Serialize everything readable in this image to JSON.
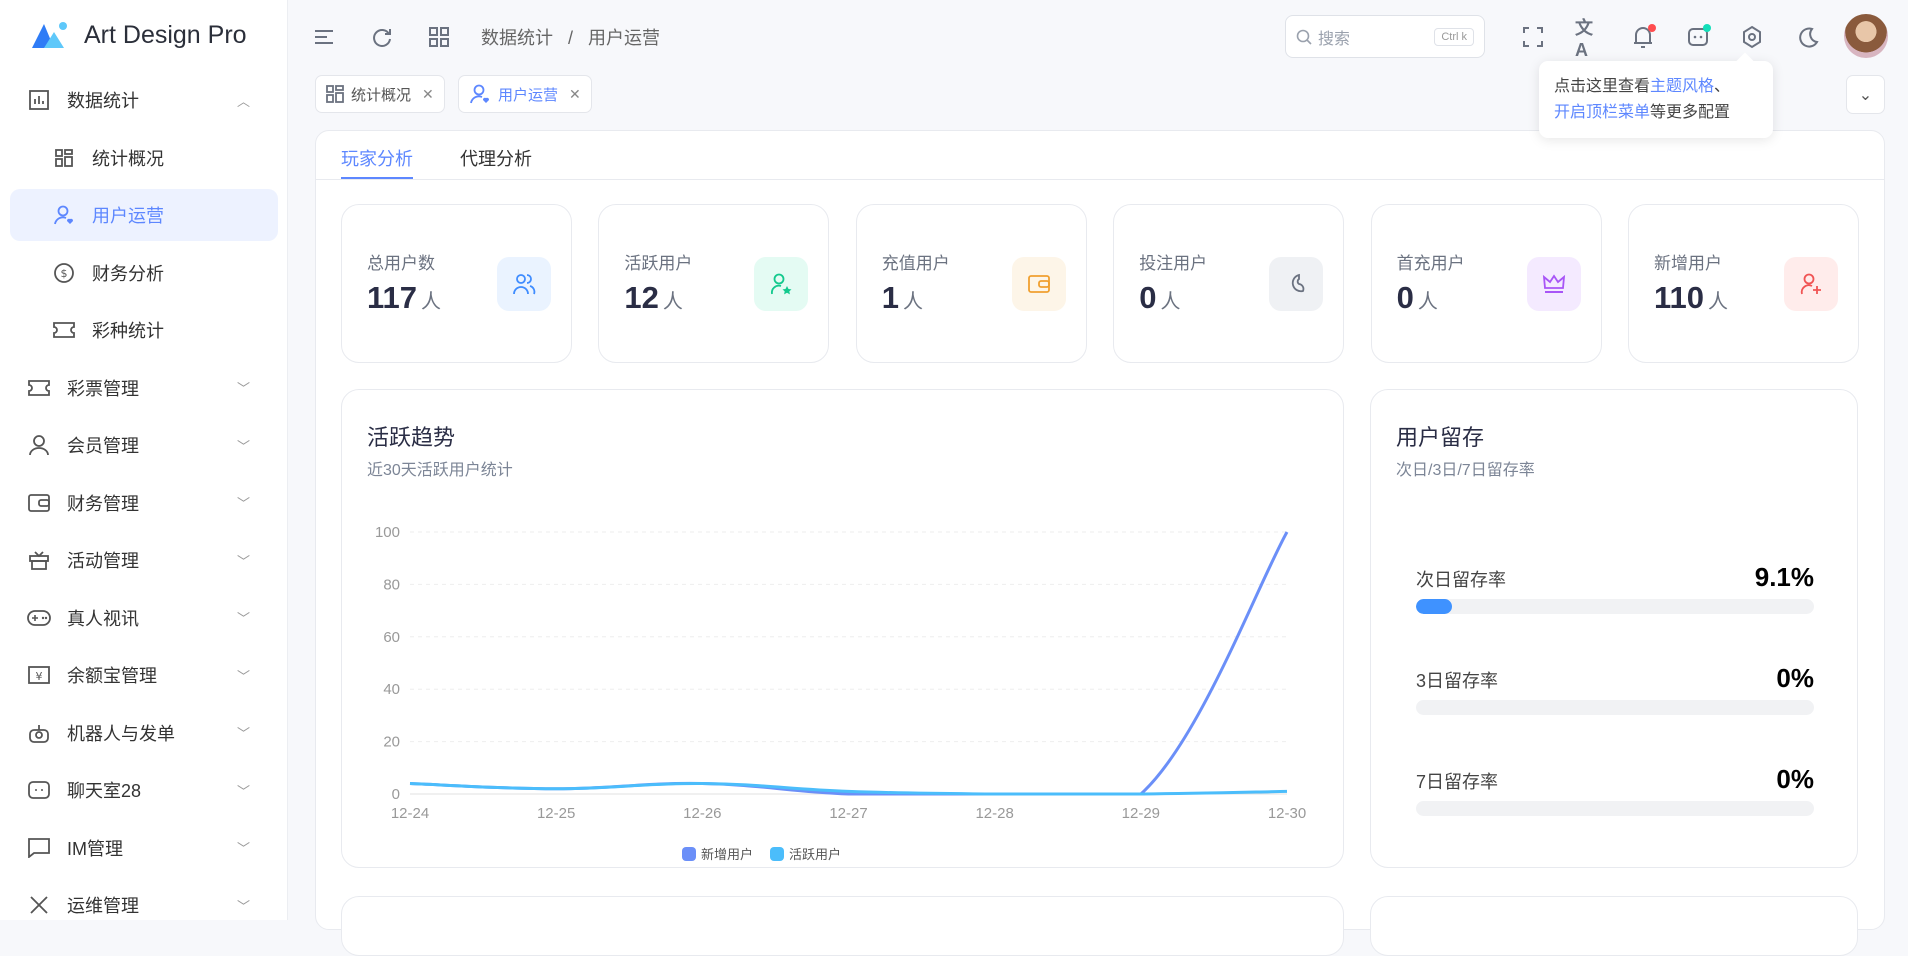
{
  "app": {
    "title": "Art Design Pro"
  },
  "sidebar": {
    "items": [
      {
        "label": "数据统计",
        "icon": "bar-chart-icon",
        "level": "top",
        "expanded": true
      },
      {
        "label": "统计概况",
        "icon": "grid-icon",
        "level": "sub"
      },
      {
        "label": "用户运营",
        "icon": "user-heart-icon",
        "level": "sub",
        "active": true
      },
      {
        "label": "财务分析",
        "icon": "dollar-circle-icon",
        "level": "sub"
      },
      {
        "label": "彩种统计",
        "icon": "ticket-icon",
        "level": "sub"
      },
      {
        "label": "彩票管理",
        "icon": "ticket-icon",
        "level": "top"
      },
      {
        "label": "会员管理",
        "icon": "user-icon",
        "level": "top"
      },
      {
        "label": "财务管理",
        "icon": "wallet-icon",
        "level": "top"
      },
      {
        "label": "活动管理",
        "icon": "gift-icon",
        "level": "top"
      },
      {
        "label": "真人视讯",
        "icon": "gamepad-icon",
        "level": "top"
      },
      {
        "label": "余额宝管理",
        "icon": "yen-icon",
        "level": "top"
      },
      {
        "label": "机器人与发单",
        "icon": "robot-icon",
        "level": "top"
      },
      {
        "label": "聊天室28",
        "icon": "chat-bot-icon",
        "level": "top"
      },
      {
        "label": "IM管理",
        "icon": "message-icon",
        "level": "top"
      },
      {
        "label": "运维管理",
        "icon": "tools-icon",
        "level": "top"
      }
    ]
  },
  "header": {
    "breadcrumb": [
      "数据统计",
      "用户运营"
    ],
    "breadcrumb_sep": "/",
    "search_placeholder": "搜索",
    "search_shortcut": "Ctrl k"
  },
  "tabs": [
    {
      "label": "统计概况",
      "icon": "grid-icon"
    },
    {
      "label": "用户运营",
      "icon": "user-heart-icon",
      "active": true
    }
  ],
  "tooltip": {
    "p1": "点击这里查看",
    "l1": "主题风格",
    "p2": "、",
    "l2": "开启顶栏菜单",
    "p3": "等更多配置"
  },
  "subtabs": [
    {
      "label": "玩家分析",
      "active": true
    },
    {
      "label": "代理分析"
    }
  ],
  "stats": [
    {
      "label": "总用户数",
      "value": "117",
      "unit": "人",
      "icon": "users-icon",
      "color": "#3f8cff",
      "bg": "#eaf3ff"
    },
    {
      "label": "活跃用户",
      "value": "12",
      "unit": "人",
      "icon": "user-star-icon",
      "color": "#13c98d",
      "bg": "#e4fbf3"
    },
    {
      "label": "充值用户",
      "value": "1",
      "unit": "人",
      "icon": "wallet-icon",
      "color": "#f0a030",
      "bg": "#fdf5e8"
    },
    {
      "label": "投注用户",
      "value": "0",
      "unit": "人",
      "icon": "bean-icon",
      "color": "#6b7280",
      "bg": "#eff1f4"
    },
    {
      "label": "首充用户",
      "value": "0",
      "unit": "人",
      "icon": "crown-icon",
      "color": "#a855f7",
      "bg": "#f4eaff"
    },
    {
      "label": "新增用户",
      "value": "110",
      "unit": "人",
      "icon": "user-plus-icon",
      "color": "#f05454",
      "bg": "#ffeceb"
    }
  ],
  "trend": {
    "title": "活跃趋势",
    "subtitle": "近30天活跃用户统计"
  },
  "chart_data": {
    "type": "line",
    "smooth": true,
    "categories": [
      "12-24",
      "12-25",
      "12-26",
      "12-27",
      "12-28",
      "12-29",
      "12-30"
    ],
    "series": [
      {
        "name": "新增用户",
        "color": "#6b8ff8",
        "values": [
          4,
          2,
          4,
          0,
          0,
          0,
          100
        ]
      },
      {
        "name": "活跃用户",
        "color": "#4bbdfb",
        "values": [
          4,
          2,
          4,
          1,
          0,
          0,
          1
        ]
      }
    ],
    "ylim": [
      0,
      100
    ],
    "yticks": [
      0,
      20,
      40,
      60,
      80,
      100
    ],
    "grid": true,
    "legend": "bottom"
  },
  "retention": {
    "title": "用户留存",
    "subtitle": "次日/3日/7日留存率",
    "rows": [
      {
        "label": "次日留存率",
        "value": "9.1%",
        "fraction": 0.091
      },
      {
        "label": "3日留存率",
        "value": "0%",
        "fraction": 0
      },
      {
        "label": "7日留存率",
        "value": "0%",
        "fraction": 0
      }
    ]
  }
}
